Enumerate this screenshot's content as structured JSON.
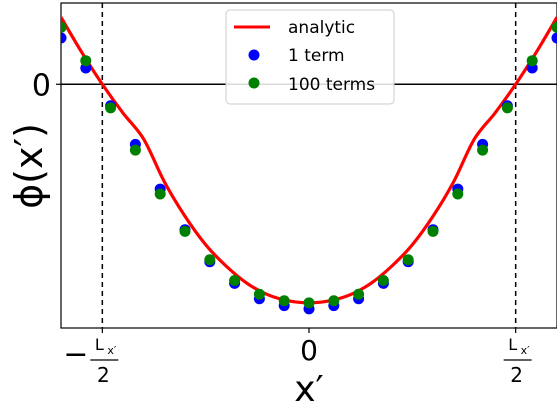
{
  "chart_data": {
    "type": "line",
    "xlabel": "x′",
    "ylabel": "ϕ(x′)",
    "xlim": [
      -0.6,
      0.6
    ],
    "ylim": [
      -0.6,
      0.2
    ],
    "x_ticks": [
      {
        "value": -0.5,
        "sign": "−",
        "num": "L",
        "sub": "x′",
        "den": "2"
      },
      {
        "value": 0,
        "text": "0"
      },
      {
        "value": 0.5,
        "sign": "",
        "num": "L",
        "sub": "x′",
        "den": "2"
      }
    ],
    "y_ticks": [
      {
        "value": 0,
        "text": "0"
      }
    ],
    "reference_lines": {
      "horizontal_y": 0,
      "vertical_x": [
        -0.5,
        0.5
      ]
    },
    "legend": {
      "position": "top-center",
      "entries": [
        {
          "label": "analytic",
          "marker": "line",
          "color": "#ff0000"
        },
        {
          "label": "1 term",
          "marker": "circle",
          "color": "#0000ff"
        },
        {
          "label": "100 terms",
          "marker": "circle",
          "color": "#008000"
        }
      ]
    },
    "series": [
      {
        "name": "analytic",
        "kind": "line",
        "color": "#ff0000",
        "x": [
          -0.6,
          -0.55,
          -0.5,
          -0.45,
          -0.4,
          -0.35,
          -0.3,
          -0.25,
          -0.2,
          -0.15,
          -0.1,
          -0.05,
          0,
          0.05,
          0.1,
          0.15,
          0.2,
          0.25,
          0.3,
          0.35,
          0.4,
          0.45,
          0.5,
          0.55,
          0.6
        ],
        "values": [
          0.165,
          0.079,
          0.0,
          -0.071,
          -0.135,
          -0.24,
          -0.325,
          -0.395,
          -0.448,
          -0.49,
          -0.518,
          -0.533,
          -0.538,
          -0.533,
          -0.518,
          -0.49,
          -0.448,
          -0.395,
          -0.325,
          -0.24,
          -0.135,
          -0.071,
          0.0,
          0.079,
          0.165
        ]
      },
      {
        "name": "1 term",
        "kind": "scatter",
        "color": "#0000ff",
        "x": [
          -0.6,
          -0.54,
          -0.48,
          -0.42,
          -0.36,
          -0.3,
          -0.24,
          -0.18,
          -0.12,
          -0.06,
          0.0,
          0.06,
          0.12,
          0.18,
          0.24,
          0.3,
          0.36,
          0.42,
          0.48,
          0.54,
          0.6
        ],
        "values": [
          0.114,
          0.04,
          -0.053,
          -0.148,
          -0.258,
          -0.358,
          -0.437,
          -0.49,
          -0.528,
          -0.545,
          -0.553,
          -0.545,
          -0.528,
          -0.49,
          -0.437,
          -0.358,
          -0.258,
          -0.148,
          -0.053,
          0.04,
          0.114
        ]
      },
      {
        "name": "100 terms",
        "kind": "scatter",
        "color": "#008000",
        "x": [
          -0.6,
          -0.54,
          -0.48,
          -0.42,
          -0.36,
          -0.3,
          -0.24,
          -0.18,
          -0.12,
          -0.06,
          0.0,
          0.06,
          0.12,
          0.18,
          0.24,
          0.3,
          0.36,
          0.42,
          0.48,
          0.54,
          0.6
        ],
        "values": [
          0.14,
          0.058,
          -0.058,
          -0.162,
          -0.27,
          -0.362,
          -0.432,
          -0.483,
          -0.517,
          -0.533,
          -0.538,
          -0.533,
          -0.517,
          -0.483,
          -0.432,
          -0.362,
          -0.27,
          -0.162,
          -0.058,
          0.058,
          0.14
        ]
      }
    ]
  }
}
